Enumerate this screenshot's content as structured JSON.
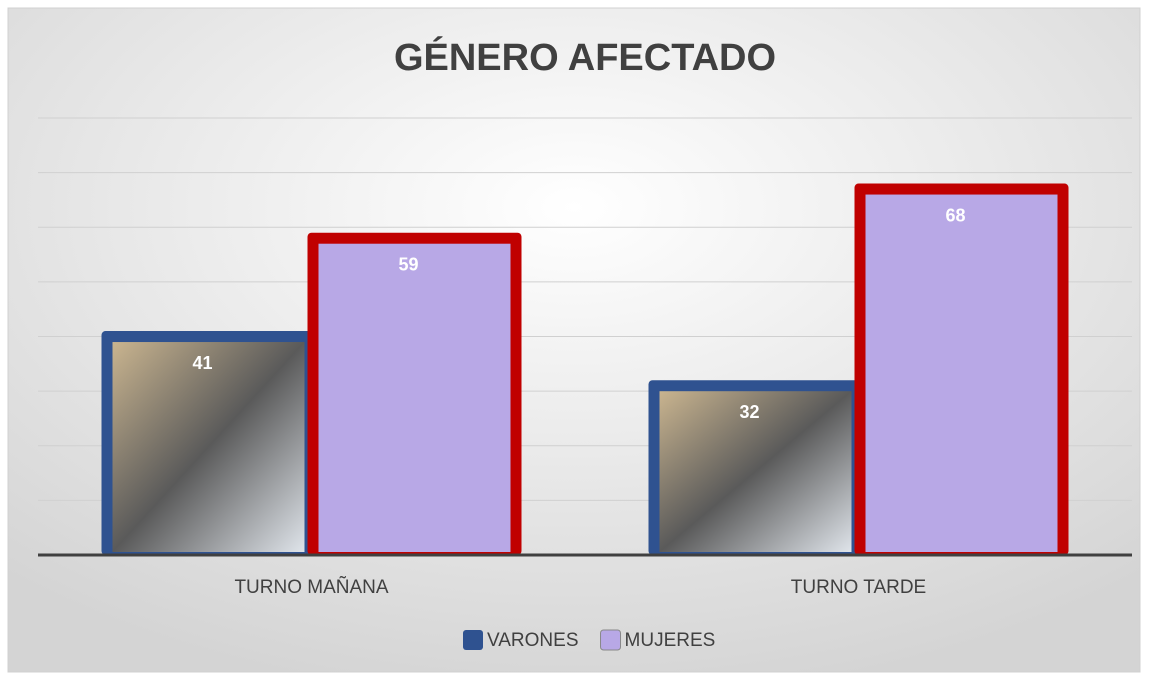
{
  "chart_data": {
    "type": "bar",
    "title": "GÉNERO AFECTADO",
    "categories": [
      "TURNO MAÑANA",
      "TURNO TARDE"
    ],
    "series": [
      {
        "name": "VARONES",
        "color": "#2f5290",
        "values": [
          41,
          32
        ]
      },
      {
        "name": "MUJERES",
        "color": "#c00000",
        "values": [
          59,
          68
        ]
      }
    ],
    "ylim": [
      0,
      80
    ],
    "yticks": [
      0,
      10,
      20,
      30,
      40,
      50,
      60,
      70,
      80
    ],
    "grid": true,
    "legend": "bottom"
  }
}
